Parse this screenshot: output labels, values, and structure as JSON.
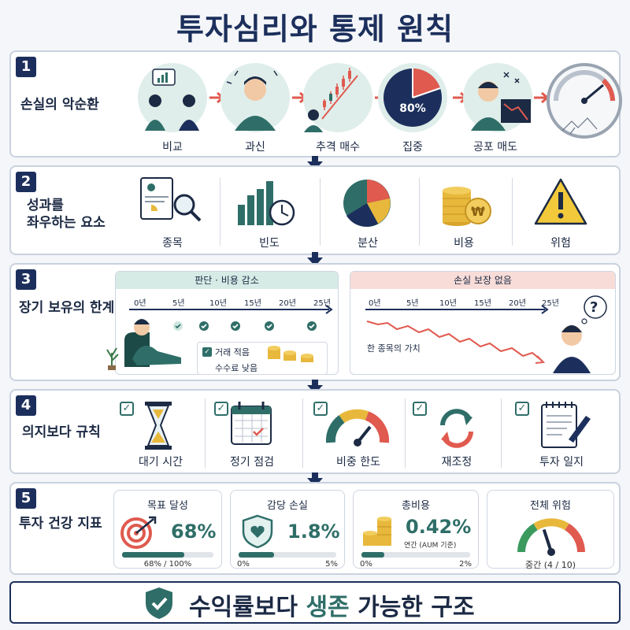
{
  "title": "투자심리와 통제 원칙",
  "sections": [
    {
      "number": "1",
      "label": "손실의 악순환",
      "items": [
        "비교",
        "과신",
        "추격 매수",
        "집중",
        "공포 매도"
      ],
      "pie_percent": "80%"
    },
    {
      "number": "2",
      "label_line1": "성과를",
      "label_line2": "좌우하는 요소",
      "items": [
        "종목",
        "빈도",
        "분산",
        "비용",
        "위험"
      ]
    },
    {
      "number": "3",
      "label": "장기 보유의 한계",
      "left_panel": {
        "header": "판단 · 비용 감소",
        "ticks": [
          "0년",
          "5년",
          "10년",
          "15년",
          "20년",
          "25년"
        ],
        "notes": [
          "거래 적음",
          "수수료 낮음"
        ]
      },
      "right_panel": {
        "header": "손실 보장 없음",
        "ticks": [
          "0년",
          "5년",
          "10년",
          "15년",
          "20년",
          "25년"
        ],
        "line_label": "한 종목의 가치",
        "thought": "?"
      }
    },
    {
      "number": "4",
      "label": "의지보다 규칙",
      "items": [
        "대기 시간",
        "정기 점검",
        "비중 한도",
        "재조정",
        "투자 일지"
      ]
    },
    {
      "number": "5",
      "label": "투자 건강 지표",
      "cards": [
        {
          "title": "목표 달성",
          "value": "68%",
          "bar_left": "68% / 100%",
          "bar_right": "",
          "progress": 0.68
        },
        {
          "title": "감당 손실",
          "value": "1.8%",
          "bar_left": "0%",
          "bar_right": "5%",
          "progress": 0.36
        },
        {
          "title": "총비용",
          "value": "0.42%",
          "sub": "연간 (AUM 기준)",
          "bar_left": "0%",
          "bar_right": "2%",
          "progress": 0.21
        },
        {
          "title": "전체 위험",
          "value_text": "중간 (4 / 10)",
          "level": 0.4
        }
      ]
    }
  ],
  "footer": {
    "part1": "수익률보다 ",
    "highlight": "생존",
    "part2": " 가능한 구조"
  },
  "colors": {
    "navy": "#1c2f5c",
    "teal": "#2f6e68",
    "red": "#e05a4f",
    "gold": "#e8b83c",
    "accent_green": "#2f6e68"
  }
}
